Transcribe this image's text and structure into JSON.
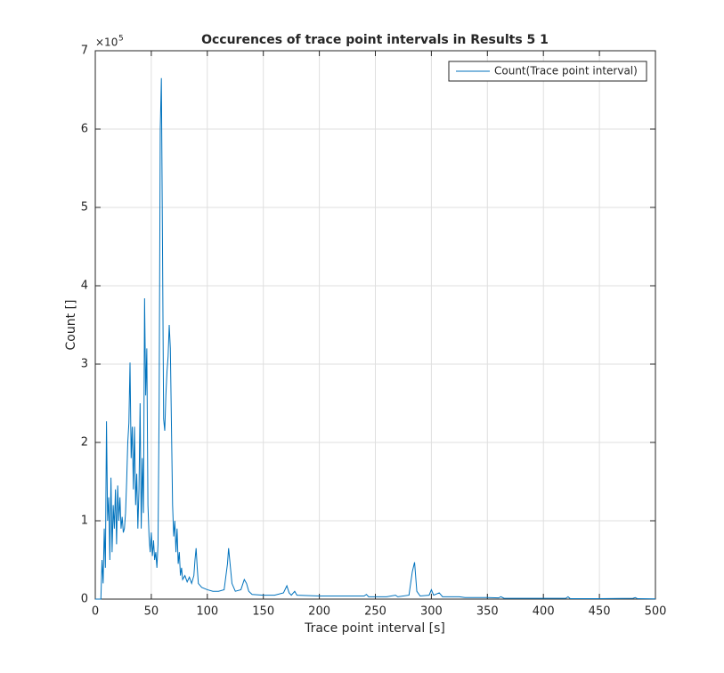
{
  "chart_data": {
    "type": "line",
    "title": "Occurences of trace point intervals in Results 5 1",
    "x_label": "Trace point interval [s]",
    "y_label": "Count []",
    "y_scale_label": "×10",
    "y_scale_exponent": "5",
    "xlim": [
      0,
      500
    ],
    "ylim": [
      0,
      7
    ],
    "xticks": [
      0,
      50,
      100,
      150,
      200,
      250,
      300,
      350,
      400,
      450,
      500
    ],
    "yticks": [
      0,
      1,
      2,
      3,
      4,
      5,
      6,
      7
    ],
    "grid": true,
    "legend_location": "northeast",
    "x": [
      0,
      5,
      6,
      7,
      8,
      9,
      10,
      11,
      12,
      13,
      14,
      15,
      16,
      17,
      18,
      19,
      20,
      21,
      22,
      23,
      24,
      25,
      26,
      27,
      28,
      29,
      30,
      31,
      32,
      33,
      34,
      35,
      36,
      37,
      38,
      39,
      40,
      41,
      42,
      43,
      44,
      45,
      46,
      47,
      48,
      49,
      50,
      51,
      52,
      53,
      54,
      55,
      56,
      57,
      58,
      59,
      60,
      61,
      62,
      63,
      64,
      65,
      66,
      67,
      68,
      69,
      70,
      71,
      72,
      73,
      74,
      75,
      76,
      77,
      78,
      80,
      82,
      84,
      86,
      88,
      89,
      90,
      91,
      92,
      95,
      100,
      105,
      110,
      115,
      118,
      119,
      120,
      122,
      125,
      130,
      133,
      135,
      137,
      140,
      150,
      160,
      168,
      171,
      173,
      175,
      178,
      180,
      200,
      220,
      240,
      242,
      244,
      260,
      268,
      270,
      280,
      283,
      285,
      287,
      290,
      298,
      300,
      302,
      307,
      310,
      325,
      330,
      350,
      360,
      362,
      365,
      400,
      420,
      422,
      424,
      450,
      480,
      482,
      484,
      500
    ],
    "series": [
      {
        "name": "Count(Trace point interval)",
        "color": "#0072bd",
        "values": [
          0,
          0,
          0.5,
          0.2,
          0.9,
          0.4,
          2.27,
          1.0,
          1.3,
          0.5,
          1.55,
          0.6,
          1.2,
          0.9,
          1.4,
          0.7,
          1.45,
          1.0,
          1.3,
          0.9,
          1.05,
          0.85,
          0.9,
          1.1,
          1.5,
          2.0,
          2.25,
          3.02,
          1.8,
          2.2,
          1.4,
          2.2,
          1.2,
          1.6,
          0.9,
          1.4,
          2.5,
          0.9,
          1.8,
          1.1,
          3.84,
          2.6,
          3.2,
          1.2,
          0.8,
          0.6,
          0.85,
          0.55,
          0.75,
          0.5,
          0.6,
          0.4,
          0.7,
          2.5,
          6.0,
          6.65,
          4.5,
          2.3,
          2.15,
          2.6,
          2.9,
          3.1,
          3.5,
          3.2,
          2.2,
          1.2,
          0.8,
          1.0,
          0.6,
          0.9,
          0.45,
          0.6,
          0.3,
          0.4,
          0.25,
          0.3,
          0.22,
          0.28,
          0.2,
          0.3,
          0.5,
          0.65,
          0.4,
          0.2,
          0.15,
          0.12,
          0.1,
          0.1,
          0.12,
          0.45,
          0.65,
          0.5,
          0.2,
          0.1,
          0.12,
          0.25,
          0.2,
          0.1,
          0.06,
          0.05,
          0.05,
          0.08,
          0.17,
          0.08,
          0.05,
          0.1,
          0.05,
          0.04,
          0.04,
          0.04,
          0.06,
          0.03,
          0.03,
          0.05,
          0.03,
          0.05,
          0.35,
          0.47,
          0.1,
          0.04,
          0.05,
          0.12,
          0.05,
          0.08,
          0.03,
          0.03,
          0.02,
          0.02,
          0.015,
          0.03,
          0.01,
          0.01,
          0.01,
          0.03,
          0.005,
          0.005,
          0.01,
          0.02,
          0.005,
          0.003
        ]
      }
    ]
  }
}
